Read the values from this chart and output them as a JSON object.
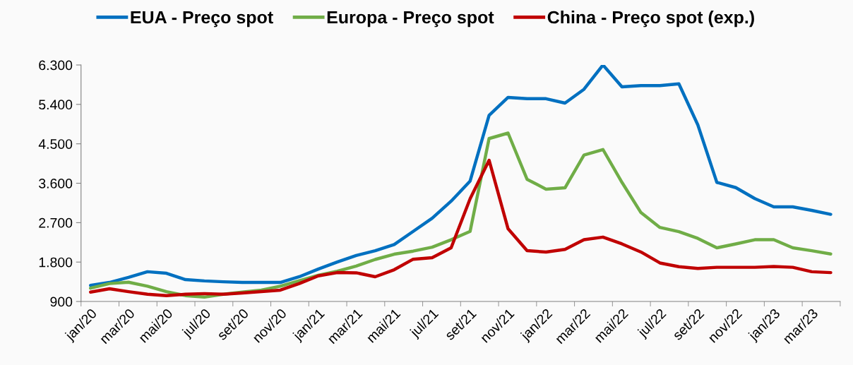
{
  "chart_data": {
    "type": "line",
    "categories": [
      "jan/20",
      null,
      "mar/20",
      null,
      "mai/20",
      null,
      "jul/20",
      null,
      "set/20",
      null,
      "nov/20",
      null,
      "jan/21",
      null,
      "mar/21",
      null,
      "mai/21",
      null,
      "jul/21",
      null,
      "set/21",
      null,
      "nov/21",
      null,
      "jan/22",
      null,
      "mar/22",
      null,
      "mai/22",
      null,
      "jul/22",
      null,
      "set/22",
      null,
      "nov/22",
      null,
      "jan/23",
      null,
      "mar/23",
      null
    ],
    "series": [
      {
        "name": "EUA - Preço spot",
        "color": "#0070c0",
        "values": [
          1270,
          1335,
          1450,
          1580,
          1545,
          1400,
          1370,
          1350,
          1335,
          1335,
          1335,
          1465,
          1640,
          1800,
          1950,
          2060,
          2200,
          2500,
          2800,
          3190,
          3650,
          5150,
          5560,
          5530,
          5530,
          5430,
          5745,
          6300,
          5800,
          5830,
          5830,
          5870,
          4930,
          3620,
          3500,
          3250,
          3060,
          3060,
          2980,
          2890
        ]
      },
      {
        "name": "Europa - Preço spot",
        "color": "#70ad47",
        "values": [
          1205,
          1310,
          1340,
          1250,
          1125,
          1035,
          1000,
          1065,
          1115,
          1160,
          1250,
          1375,
          1500,
          1590,
          1710,
          1860,
          1980,
          2050,
          2140,
          2310,
          2500,
          4620,
          4745,
          3690,
          3465,
          3495,
          4245,
          4370,
          3620,
          2930,
          2590,
          2495,
          2340,
          2125,
          2215,
          2310,
          2310,
          2125,
          2060,
          1985
        ]
      },
      {
        "name": "China - Preço spot (exp.)",
        "color": "#c00000",
        "values": [
          1115,
          1190,
          1125,
          1065,
          1035,
          1065,
          1080,
          1065,
          1095,
          1125,
          1160,
          1310,
          1485,
          1560,
          1555,
          1465,
          1625,
          1865,
          1900,
          2125,
          3245,
          4125,
          2560,
          2060,
          2030,
          2090,
          2310,
          2370,
          2215,
          2030,
          1780,
          1695,
          1655,
          1680,
          1680,
          1680,
          1700,
          1680,
          1580,
          1560
        ]
      }
    ],
    "ylim": [
      900,
      6300
    ],
    "yticks": [
      {
        "value": 900,
        "label": "900"
      },
      {
        "value": 1800,
        "label": "1.800"
      },
      {
        "value": 2700,
        "label": "2.700"
      },
      {
        "value": 3600,
        "label": "3.600"
      },
      {
        "value": 4500,
        "label": "4.500"
      },
      {
        "value": 5400,
        "label": "5.400"
      },
      {
        "value": 6300,
        "label": "6.300"
      }
    ],
    "legend": "top",
    "grid": false,
    "marker": "none",
    "line_style": "solid"
  }
}
